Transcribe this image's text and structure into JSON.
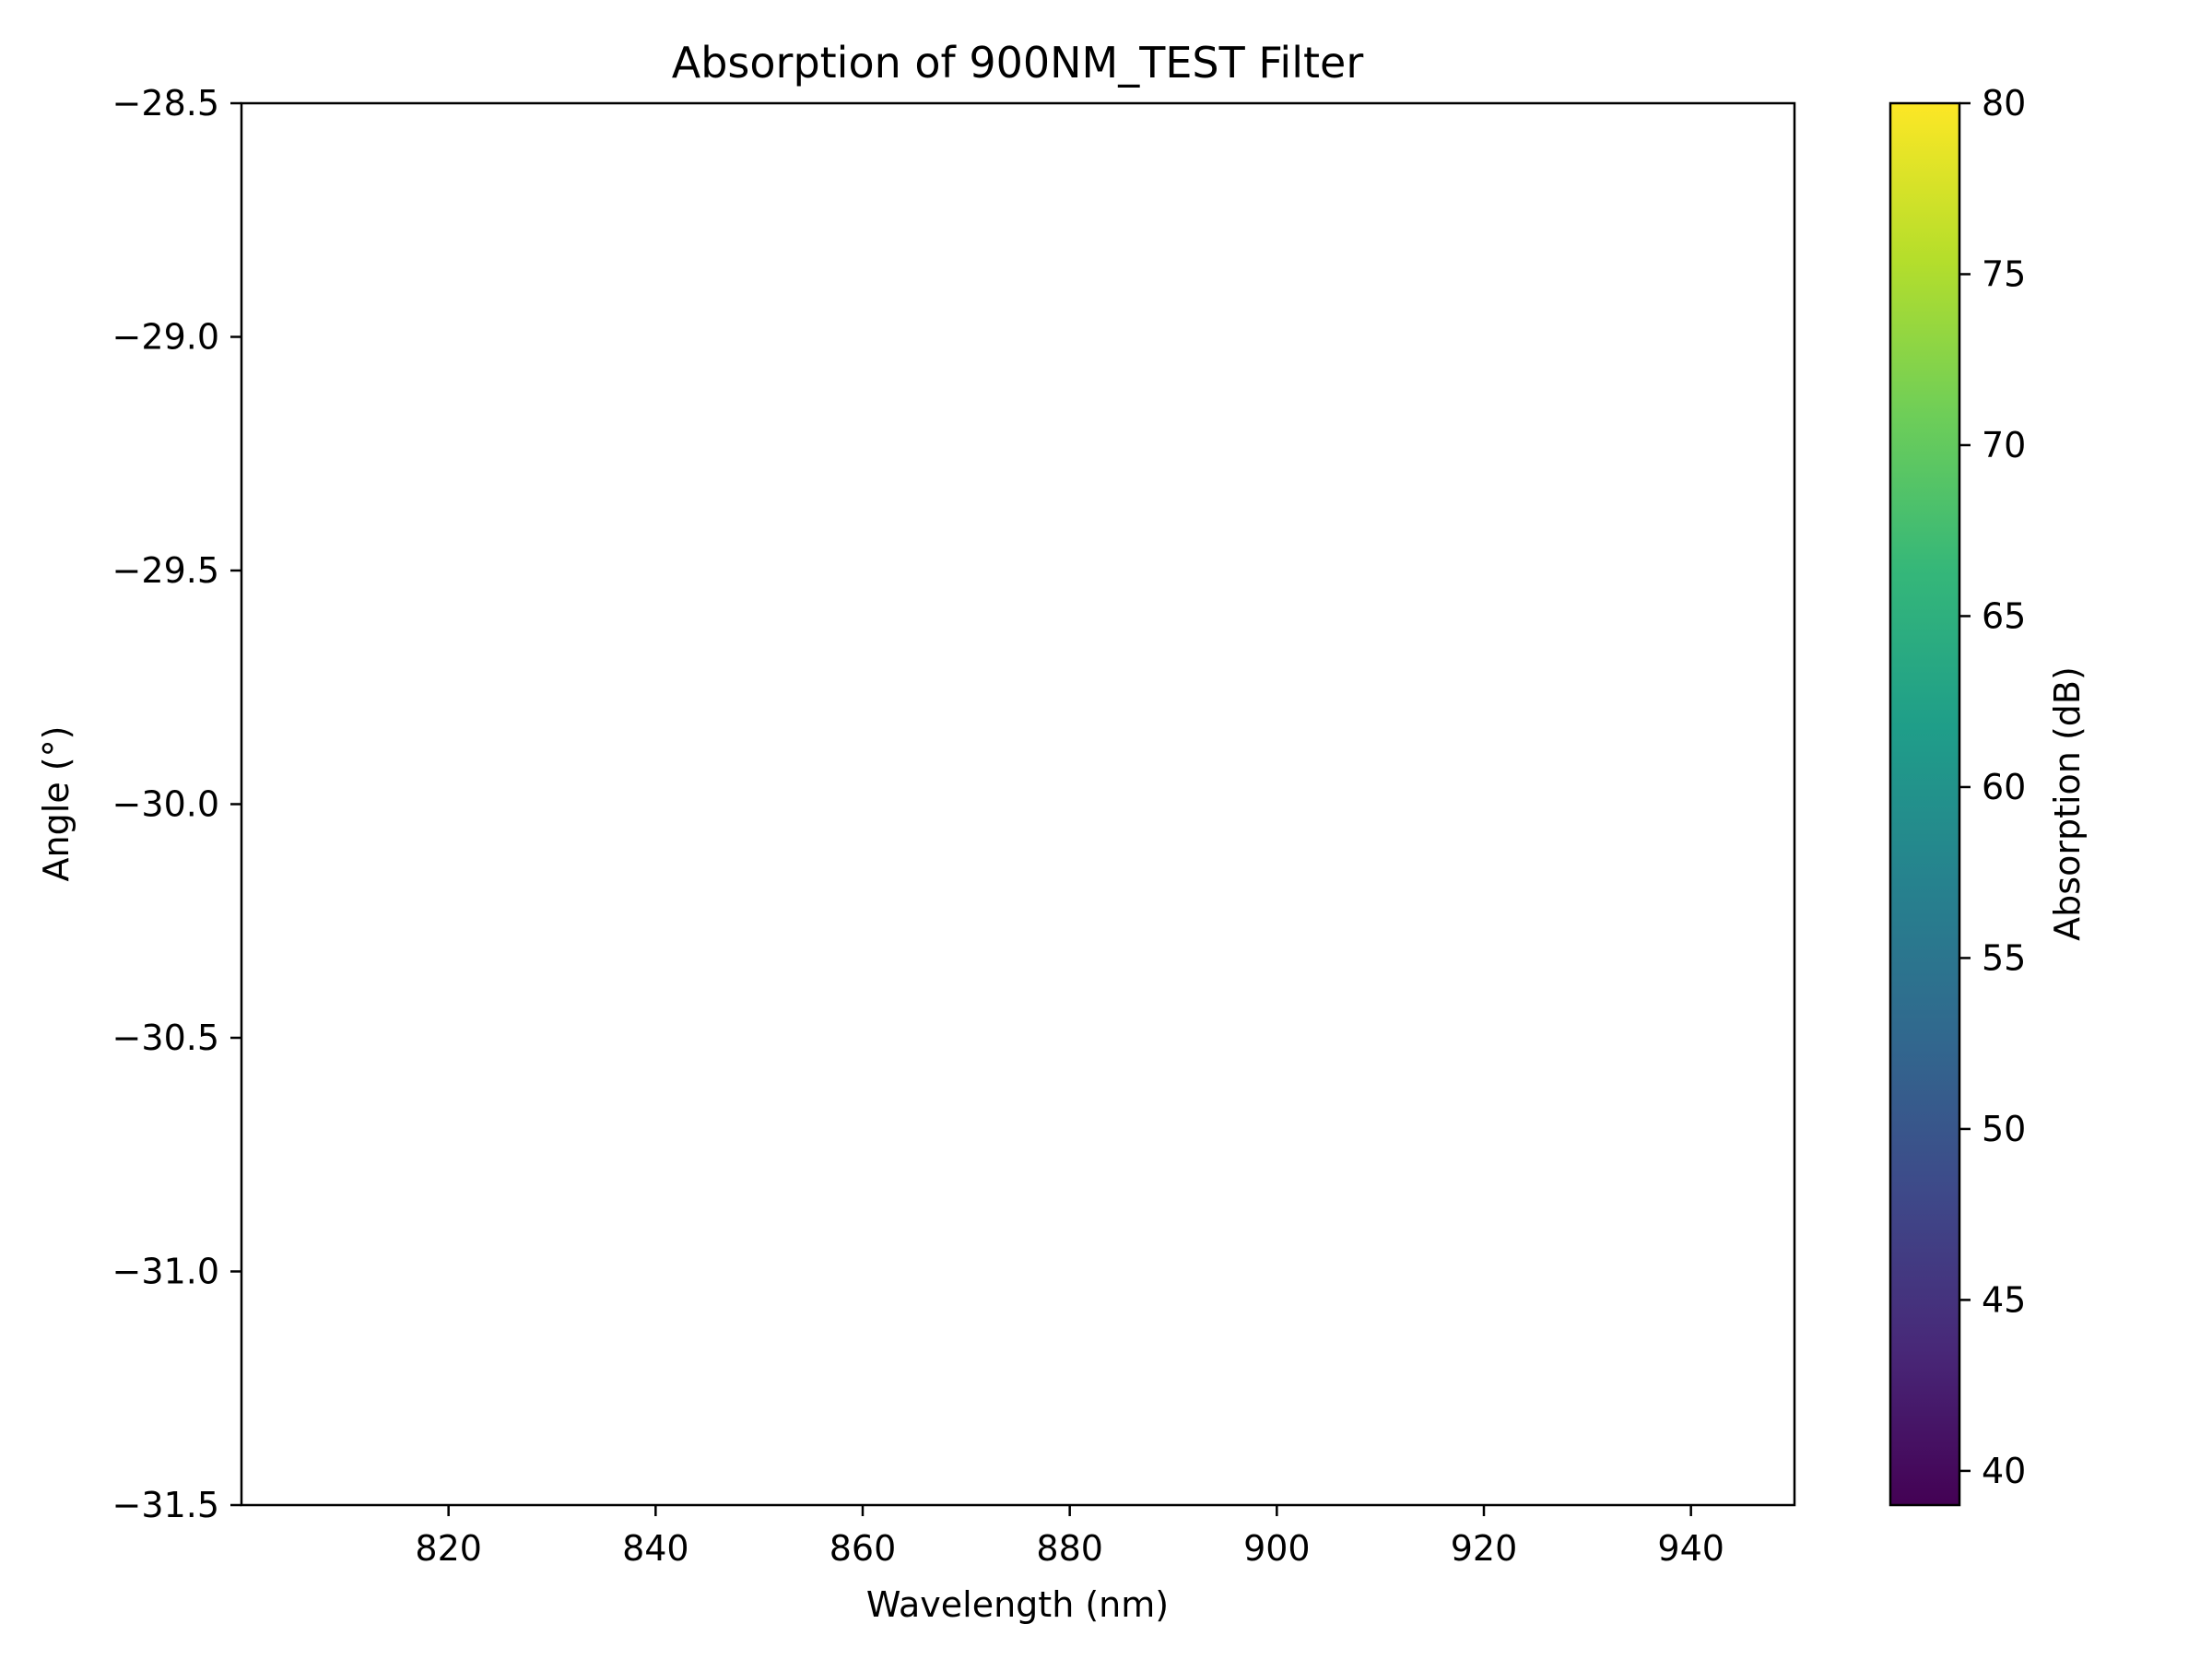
{
  "chart_data": {
    "type": "heatmap",
    "title": "Absorption of 900NM_TEST Filter",
    "xlabel": "Wavelength (nm)",
    "ylabel": "Angle (°)",
    "xlim": [
      800,
      950
    ],
    "ylim": [
      -31.5,
      -28.5
    ],
    "xticks": [
      820,
      840,
      860,
      880,
      900,
      920,
      940
    ],
    "yticks": [
      -28.5,
      -29.0,
      -29.5,
      -30.0,
      -30.5,
      -31.0,
      -31.5
    ],
    "xtick_labels": [
      "820",
      "840",
      "860",
      "880",
      "900",
      "920",
      "940"
    ],
    "ytick_labels": [
      "−28.5",
      "−29.0",
      "−29.5",
      "−30.0",
      "−30.5",
      "−31.0",
      "−31.5"
    ],
    "values": [],
    "grid": false,
    "colorbar": {
      "label": "Absorption (dB)",
      "colormap": "viridis",
      "range": [
        39,
        80
      ],
      "ticks": [
        40,
        45,
        50,
        55,
        60,
        65,
        70,
        75,
        80
      ],
      "tick_labels": [
        "40",
        "45",
        "50",
        "55",
        "60",
        "65",
        "70",
        "75",
        "80"
      ],
      "colors": [
        "#440154",
        "#482878",
        "#3e4989",
        "#31688e",
        "#26828e",
        "#1f9e89",
        "#35b779",
        "#6ece58",
        "#b5de2b",
        "#fde725"
      ]
    }
  }
}
